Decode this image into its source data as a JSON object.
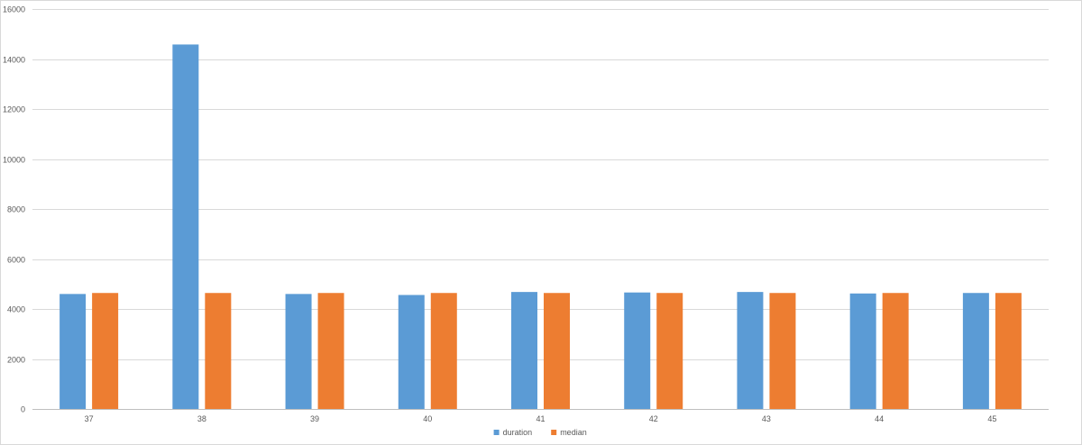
{
  "chart_data": {
    "type": "bar",
    "title": "",
    "xlabel": "",
    "ylabel": "",
    "categories": [
      "37",
      "38",
      "39",
      "40",
      "41",
      "42",
      "43",
      "44",
      "45"
    ],
    "series": [
      {
        "name": "duration",
        "color": "#5b9bd5",
        "values": [
          4600,
          14580,
          4600,
          4560,
          4680,
          4660,
          4680,
          4620,
          4640
        ]
      },
      {
        "name": "median",
        "color": "#ed7d31",
        "values": [
          4640,
          4640,
          4640,
          4640,
          4640,
          4640,
          4640,
          4640,
          4640
        ]
      }
    ],
    "ylim": [
      0,
      16000
    ],
    "yticks": [
      0,
      2000,
      4000,
      6000,
      8000,
      10000,
      12000,
      14000,
      16000
    ],
    "grid": true,
    "legend": "bottom-center"
  }
}
